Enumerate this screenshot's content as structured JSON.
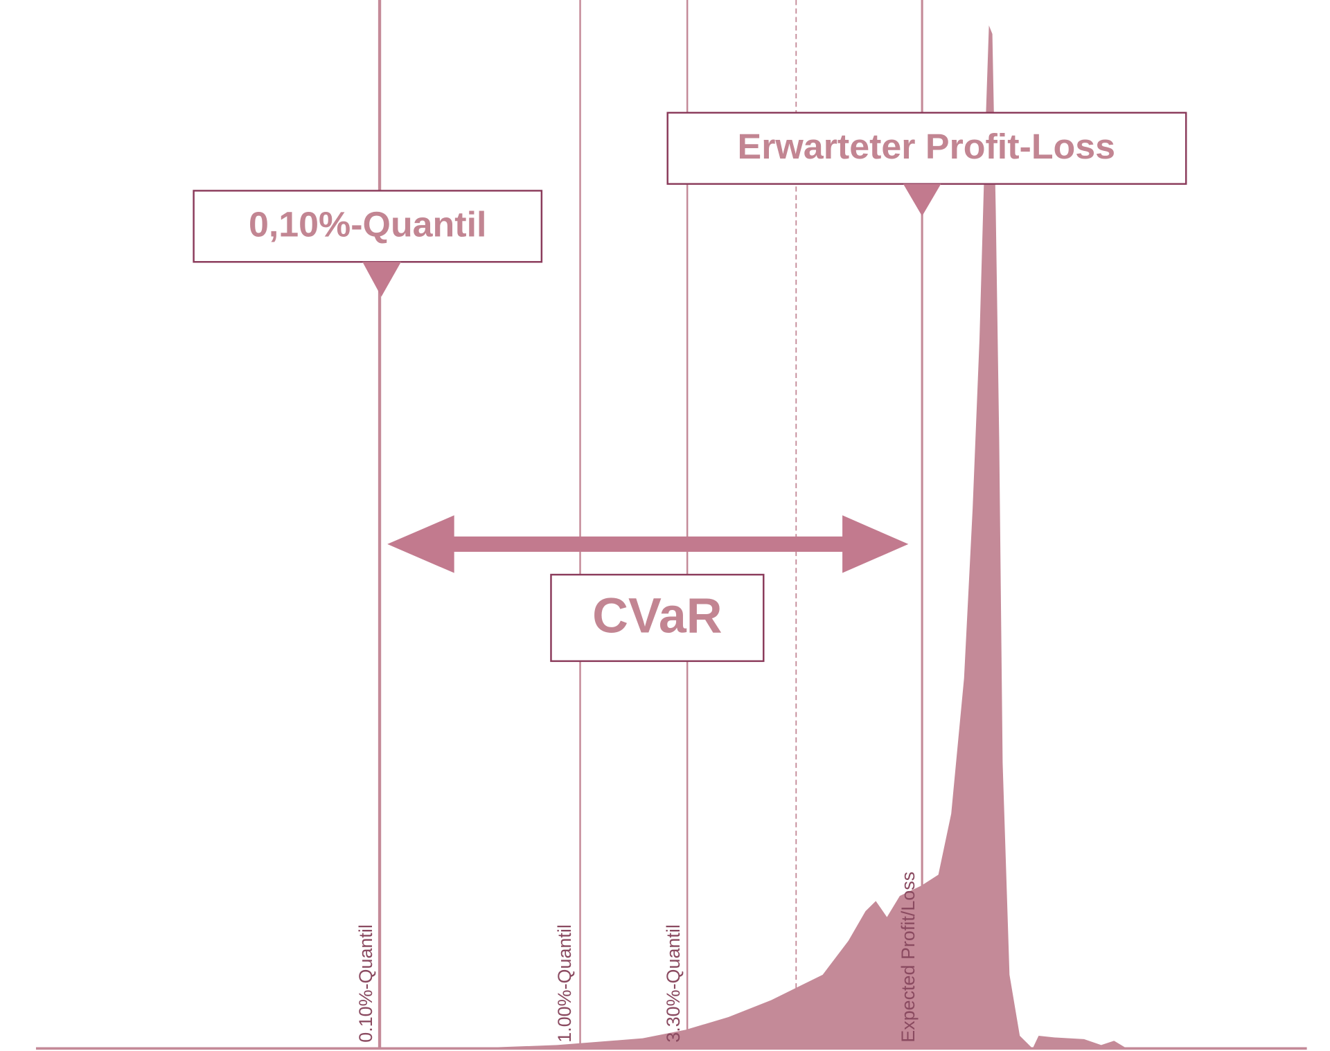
{
  "callouts": {
    "quantile": "0,10%-Quantil",
    "expected": "Erwarteter Profit-Loss",
    "cvar": "CVaR"
  },
  "line_labels": [
    "0.10%-Quantil",
    "1.00%-Quantil",
    "3.30%-Quantil",
    "Expected Profit/Loss"
  ]
}
